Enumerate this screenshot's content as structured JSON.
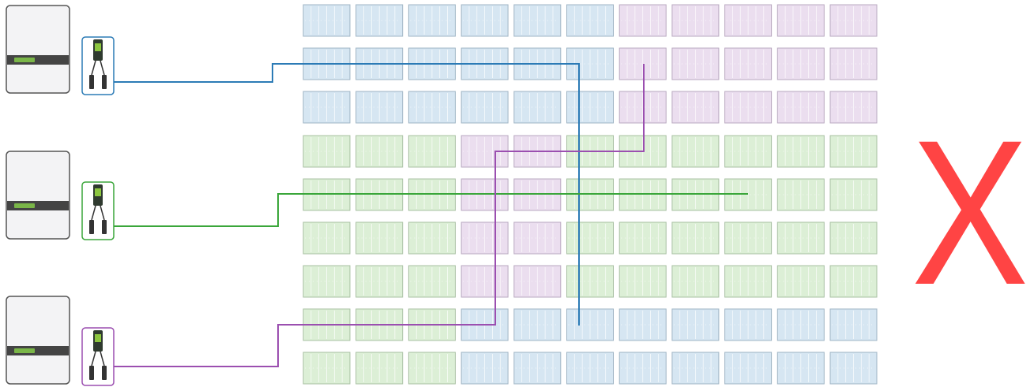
{
  "verdict": "X"
}
